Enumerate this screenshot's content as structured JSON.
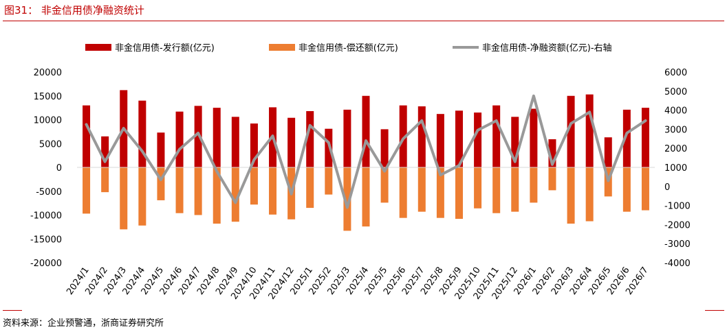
{
  "figure": {
    "title": "图31：  非金信用债净融资统计",
    "source": "资料来源：企业预警通，浙商证券研究所"
  },
  "colors": {
    "accent": "#c00000",
    "issuance": "#c00000",
    "repayment": "#ed7d31",
    "net": "#999999"
  },
  "chart_data": {
    "type": "bar",
    "categories": [
      "2024/1",
      "2024/2",
      "2024/3",
      "2024/4",
      "2024/5",
      "2024/6",
      "2024/7",
      "2024/8",
      "2024/9",
      "2024/10",
      "2024/11",
      "2024/12",
      "2025/1",
      "2025/2",
      "2025/3",
      "2025/4",
      "2025/5",
      "2025/6",
      "2025/7",
      "2025/8",
      "2025/9",
      "2025/10",
      "2025/11",
      "2025/12",
      "2026/1",
      "2026/2",
      "2026/3",
      "2026/4",
      "2026/5",
      "2026/6",
      "2026/7"
    ],
    "series": [
      {
        "name": "非金信用债-发行额(亿元)",
        "type": "bar",
        "axis": "left",
        "values": [
          13000,
          6500,
          16200,
          14000,
          7300,
          11700,
          12900,
          12500,
          10600,
          9200,
          12600,
          10400,
          11800,
          8100,
          12100,
          15000,
          8000,
          13000,
          12800,
          11200,
          11900,
          11500,
          13000,
          10600,
          12300,
          5900,
          15000,
          15300,
          6300,
          12100,
          12500
        ]
      },
      {
        "name": "非金信用债-偿还额(亿元)",
        "type": "bar",
        "axis": "left",
        "values": [
          -9700,
          -5200,
          -13000,
          -12200,
          -6900,
          -9600,
          -10000,
          -11800,
          -11400,
          -7800,
          -9900,
          -10900,
          -8500,
          -5700,
          -13300,
          -12400,
          -7400,
          -10600,
          -9300,
          -10600,
          -10800,
          -8600,
          -9600,
          -9300,
          -7400,
          -4800,
          -11800,
          -11300,
          -6100,
          -9300,
          -9000
        ]
      },
      {
        "name": "非金信用债-净融资额(亿元)-右轴",
        "type": "line",
        "axis": "right",
        "values": [
          3250,
          1300,
          3050,
          1850,
          350,
          1950,
          2800,
          800,
          -850,
          1400,
          2650,
          -400,
          3200,
          2300,
          -1100,
          2400,
          800,
          2500,
          3450,
          600,
          1100,
          2950,
          3450,
          1300,
          4750,
          1150,
          3300,
          3900,
          300,
          2800,
          3450
        ]
      }
    ],
    "y_left": {
      "ylim": [
        -20000,
        20000
      ],
      "ticks": [
        "20000",
        "15000",
        "10000",
        "5000",
        "0",
        "-5000",
        "-10000",
        "-15000",
        "-20000"
      ]
    },
    "y_right": {
      "ylim": [
        -4000,
        6000
      ],
      "ticks": [
        "6000",
        "5000",
        "4000",
        "3000",
        "2000",
        "1000",
        "0",
        "-1000",
        "-2000",
        "-3000",
        "-4000"
      ]
    },
    "legend": "top",
    "grid": false
  }
}
